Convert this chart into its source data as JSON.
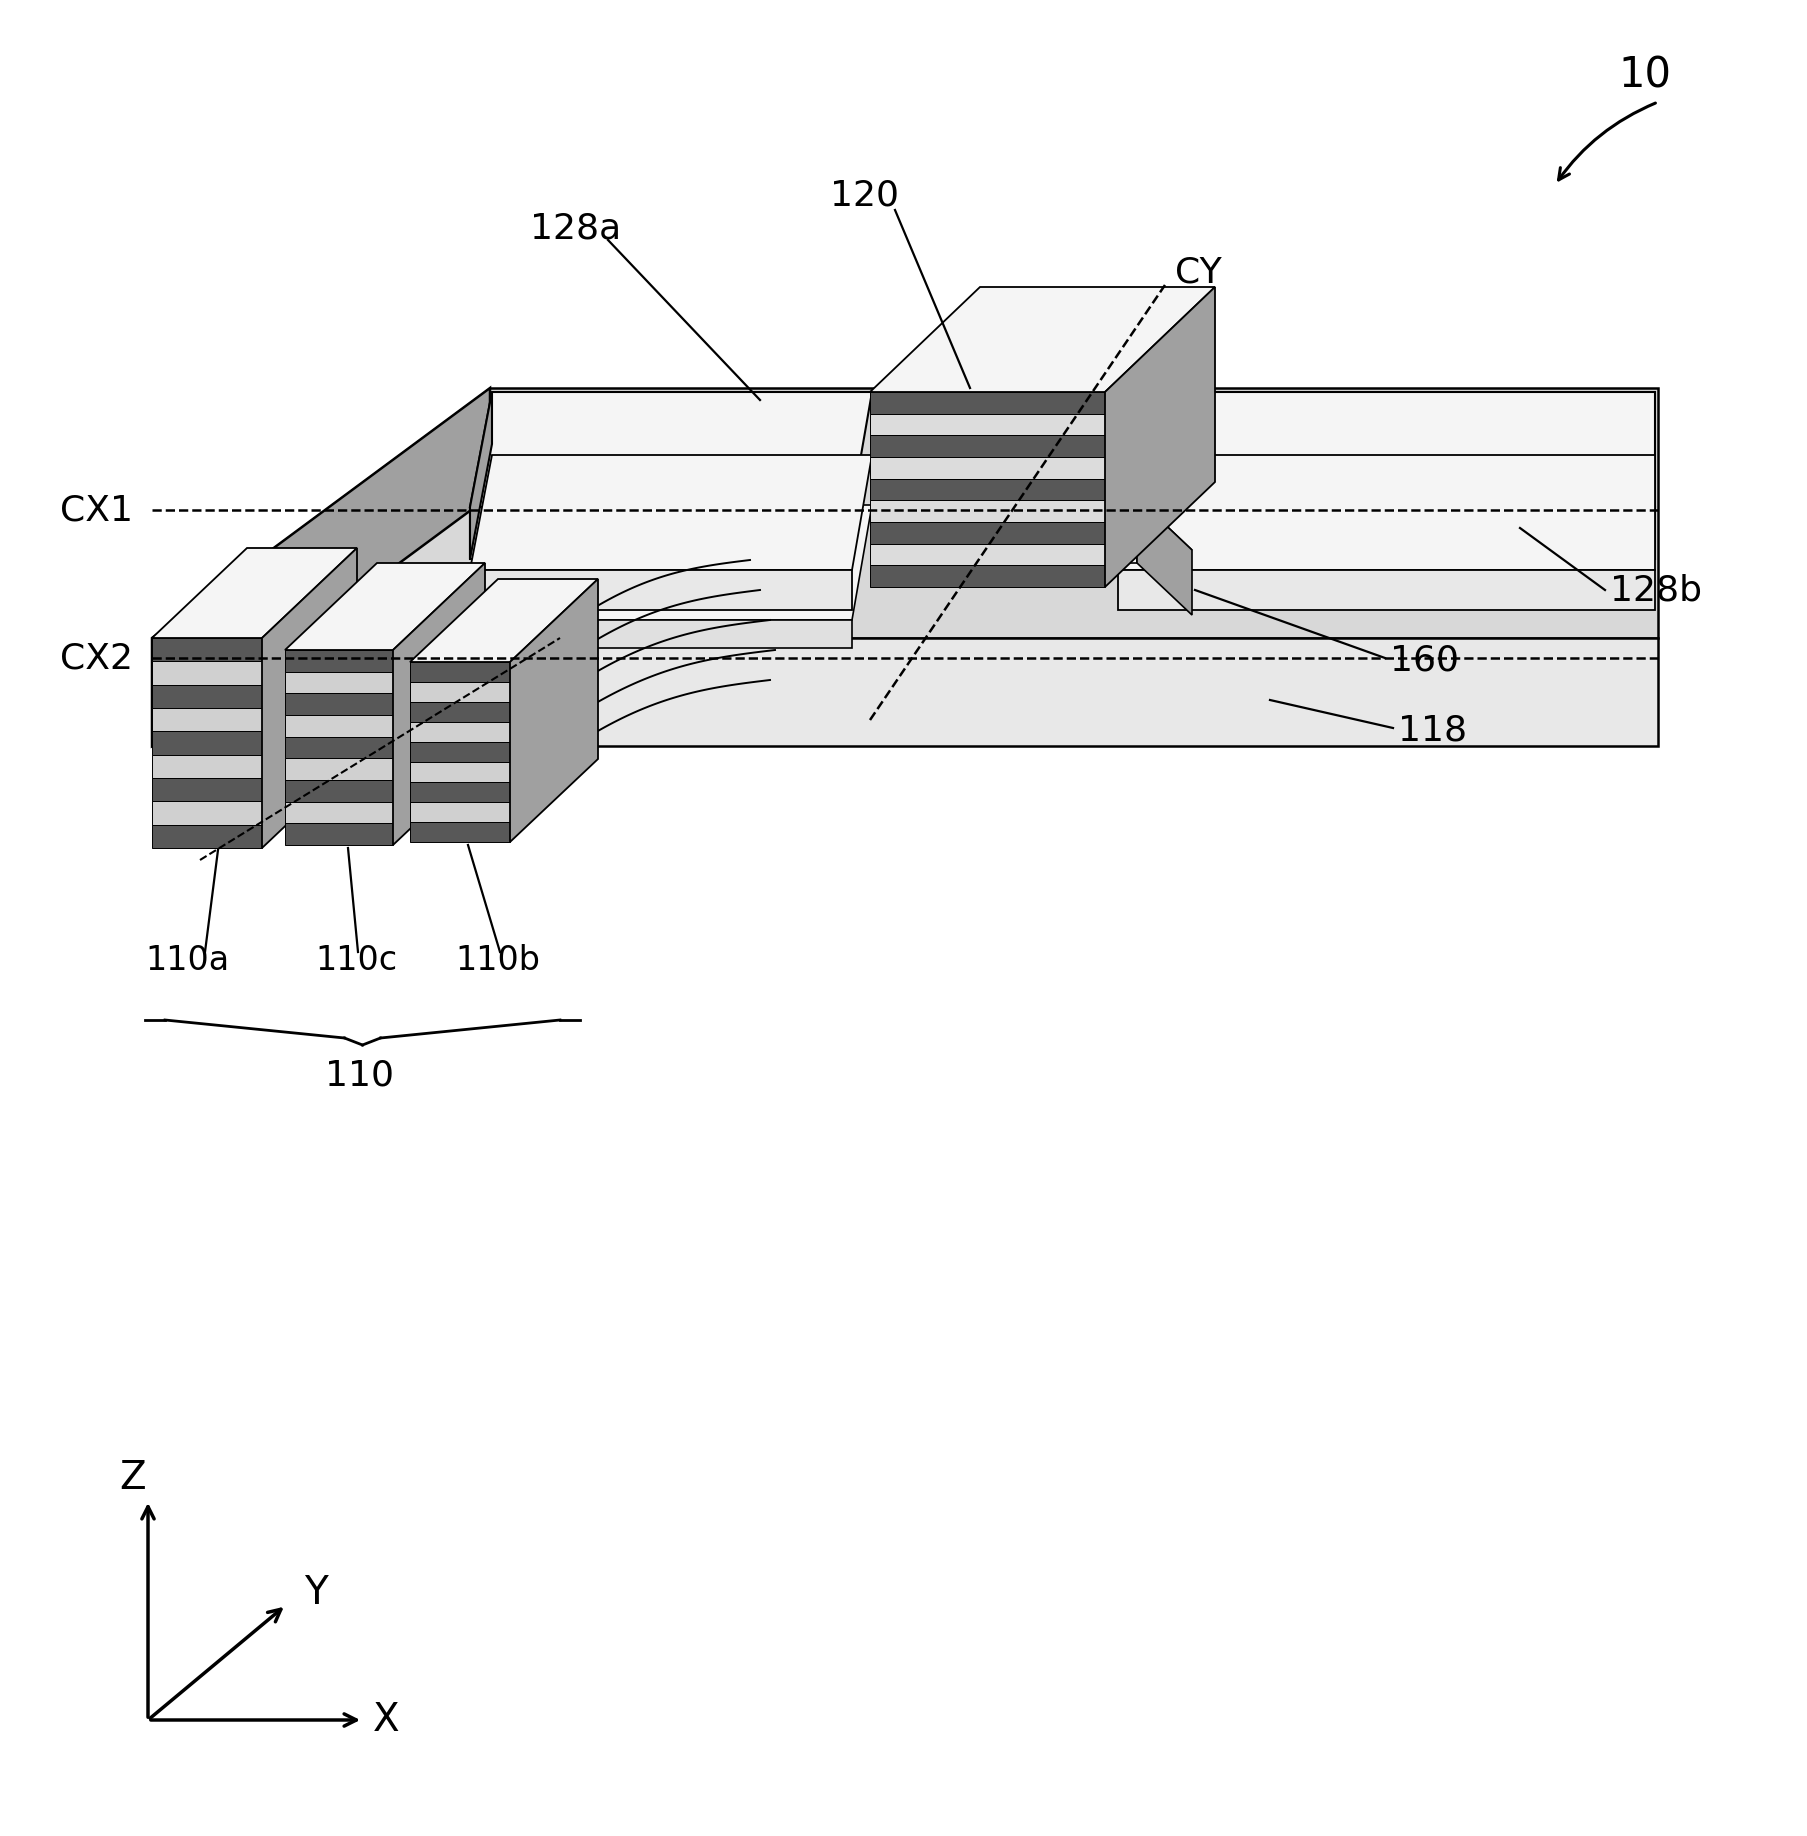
{
  "bg_color": "#ffffff",
  "line_color": "#000000",
  "label_10": "10",
  "label_120": "120",
  "label_128a": "128a",
  "label_128b": "128b",
  "label_160": "160",
  "label_118": "118",
  "label_110a": "110a",
  "label_110b": "110b",
  "label_110c": "110c",
  "label_110": "110",
  "label_CX1": "CX1",
  "label_CX2": "CX2",
  "label_CY": "CY",
  "label_X": "X",
  "label_Y": "Y",
  "label_Z": "Z",
  "figsize": [
    18.08,
    18.36
  ],
  "dpi": 100,
  "c_top": "#d8d8d8",
  "c_side": "#a0a0a0",
  "c_front": "#e8e8e8",
  "c_white": "#f5f5f5",
  "c_dark_stripe": "#585858",
  "c_light_stripe": "#d0d0d0"
}
